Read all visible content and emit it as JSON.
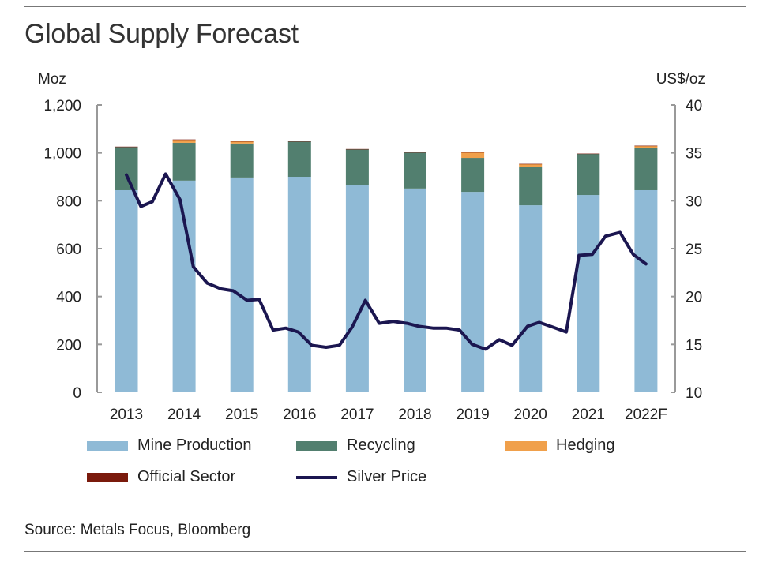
{
  "title": "Global Supply Forecast",
  "source": "Source: Metals Focus, Bloomberg",
  "colors": {
    "mine": "#8fbad6",
    "recycling": "#527f6f",
    "hedging": "#f0a04b",
    "official": "#7a1a0c",
    "price": "#1b1650"
  },
  "chart_data": {
    "type": "bar",
    "title": "Global Supply Forecast",
    "ylabel": "Moz",
    "y2label": "US$/oz",
    "ylim": [
      0,
      1200
    ],
    "y2lim": [
      10,
      40
    ],
    "yticks": [
      "0",
      "200",
      "400",
      "600",
      "800",
      "1,000",
      "1,200"
    ],
    "y2ticks": [
      "10",
      "15",
      "20",
      "25",
      "30",
      "35",
      "40"
    ],
    "categories": [
      "2013",
      "2014",
      "2015",
      "2016",
      "2017",
      "2018",
      "2019",
      "2020",
      "2021",
      "2022F"
    ],
    "series": [
      {
        "name": "Mine Production",
        "type": "bar",
        "values": [
          844,
          884,
          897,
          900,
          864,
          851,
          837,
          781,
          824,
          844
        ]
      },
      {
        "name": "Recycling",
        "type": "bar",
        "values": [
          181,
          158,
          142,
          148,
          151,
          151,
          142,
          159,
          172,
          178
        ]
      },
      {
        "name": "Hedging",
        "type": "bar",
        "values": [
          0,
          13,
          9,
          0,
          0,
          0,
          23,
          13,
          0,
          7
        ]
      },
      {
        "name": "Official Sector",
        "type": "bar",
        "values": [
          1,
          1,
          1,
          1,
          1,
          1,
          1,
          1,
          1,
          1
        ]
      },
      {
        "name": "Silver Price",
        "type": "line",
        "axis": "right",
        "x": [
          2013.0,
          2013.25,
          2013.45,
          2013.68,
          2013.93,
          2014.16,
          2014.4,
          2014.64,
          2014.85,
          2015.09,
          2015.3,
          2015.54,
          2015.76,
          2015.98,
          2016.21,
          2016.46,
          2016.69,
          2016.91,
          2017.14,
          2017.38,
          2017.62,
          2017.86,
          2018.06,
          2018.31,
          2018.54,
          2018.77,
          2018.99,
          2019.22,
          2019.46,
          2019.68,
          2019.95,
          2020.15,
          2020.39,
          2020.62,
          2020.84,
          2021.07,
          2021.3,
          2021.55,
          2021.78,
          2022.0
        ],
        "values": [
          32.7,
          29.4,
          29.9,
          32.8,
          30.1,
          23.1,
          21.4,
          20.8,
          20.6,
          19.6,
          19.7,
          16.5,
          16.7,
          16.3,
          14.9,
          14.7,
          14.9,
          16.8,
          19.6,
          17.2,
          17.4,
          17.2,
          16.9,
          16.7,
          16.7,
          16.5,
          15.0,
          14.5,
          15.5,
          14.9,
          16.9,
          17.3,
          16.8,
          16.3,
          24.3,
          24.4,
          26.3,
          26.7,
          24.4,
          23.4
        ]
      }
    ],
    "legend": [
      "Mine Production",
      "Recycling",
      "Hedging",
      "Official Sector",
      "Silver Price"
    ],
    "legend_position": "bottom"
  }
}
